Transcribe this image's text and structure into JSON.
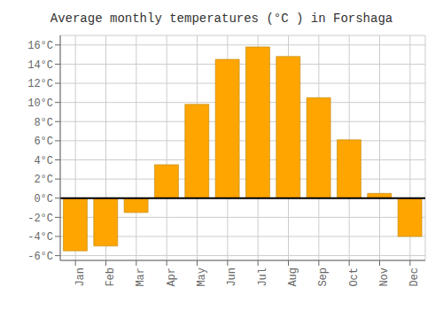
{
  "chart_data": {
    "type": "bar",
    "title": "Average monthly temperatures (°C ) in Forshaga",
    "categories": [
      "Jan",
      "Feb",
      "Mar",
      "Apr",
      "May",
      "Jun",
      "Jul",
      "Aug",
      "Sep",
      "Oct",
      "Nov",
      "Dec"
    ],
    "values": [
      -5.5,
      -5.0,
      -1.5,
      3.5,
      9.8,
      14.5,
      15.8,
      14.8,
      10.5,
      6.1,
      0.5,
      -4.0
    ],
    "color": "#FFA500",
    "ylim": [
      -6.5,
      17
    ],
    "yticks": [
      {
        "value": -6,
        "label": "-6°C"
      },
      {
        "value": -4,
        "label": "-4°C"
      },
      {
        "value": -2,
        "label": "-2°C"
      },
      {
        "value": 0,
        "label": "0°C"
      },
      {
        "value": 2,
        "label": "2°C"
      },
      {
        "value": 4,
        "label": "4°C"
      },
      {
        "value": 6,
        "label": "6°C"
      },
      {
        "value": 8,
        "label": "8°C"
      },
      {
        "value": 10,
        "label": "10°C"
      },
      {
        "value": 12,
        "label": "12°C"
      },
      {
        "value": 14,
        "label": "14°C"
      },
      {
        "value": 16,
        "label": "16°C"
      }
    ],
    "grid": true
  }
}
